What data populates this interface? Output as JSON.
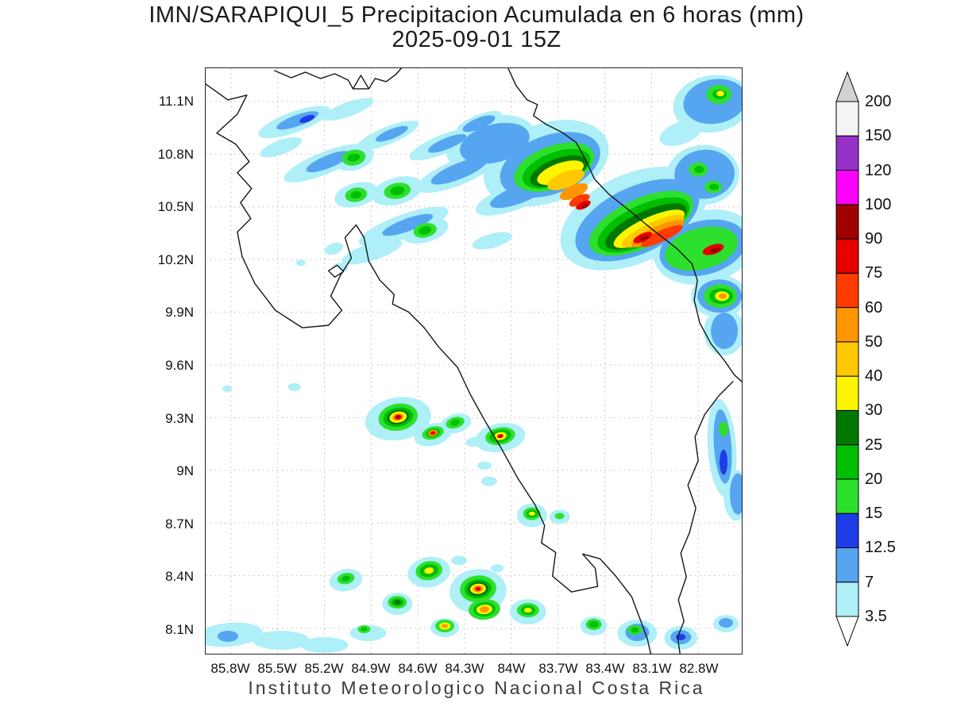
{
  "title": {
    "line1": "IMN/SARAPIQUI_5 Precipitacion Acumulada en 6 horas (mm)",
    "line2": "2025-09-01 15Z"
  },
  "footer": "Instituto Meteorologico Nacional Costa Rica",
  "axes": {
    "lat_labels": [
      "11.1N",
      "10.8N",
      "10.5N",
      "10.2N",
      "9.9N",
      "9.6N",
      "9.3N",
      "9N",
      "8.7N",
      "8.4N",
      "8.1N"
    ],
    "lon_labels": [
      "85.8W",
      "85.5W",
      "85.2W",
      "84.9W",
      "84.6W",
      "84.3W",
      "84W",
      "83.7W",
      "83.4W",
      "83.1W",
      "82.8W"
    ]
  },
  "colorbar": {
    "units": "mm",
    "levels_top_to_bottom": [
      "200",
      "150",
      "120",
      "100",
      "90",
      "75",
      "60",
      "50",
      "40",
      "30",
      "25",
      "20",
      "15",
      "12.5",
      "7",
      "3.5"
    ],
    "segment_colors_bottom_to_top": [
      "#AEEFF8",
      "#55A5F0",
      "#1E3CE6",
      "#2EE02E",
      "#00BE00",
      "#007800",
      "#FFF500",
      "#FFC800",
      "#FF9600",
      "#FF3C00",
      "#E60000",
      "#A00000",
      "#FF00FF",
      "#9632C8",
      "#F4F4F4"
    ],
    "above_color": "#D2D2D2",
    "below_color": "#FFFFFF"
  }
}
